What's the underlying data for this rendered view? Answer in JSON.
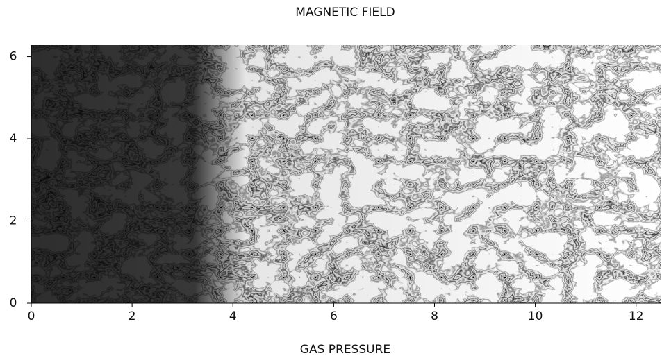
{
  "chart_data": {
    "type": "image",
    "title": "MAGNETIC FIELD",
    "x_label": "GAS PRESSURE",
    "xlim": [
      0,
      12.5
    ],
    "ylim": [
      0,
      6.28
    ],
    "xticks": [
      0,
      2,
      4,
      6,
      8,
      10,
      12
    ],
    "yticks": [
      0,
      2,
      4,
      6
    ]
  }
}
